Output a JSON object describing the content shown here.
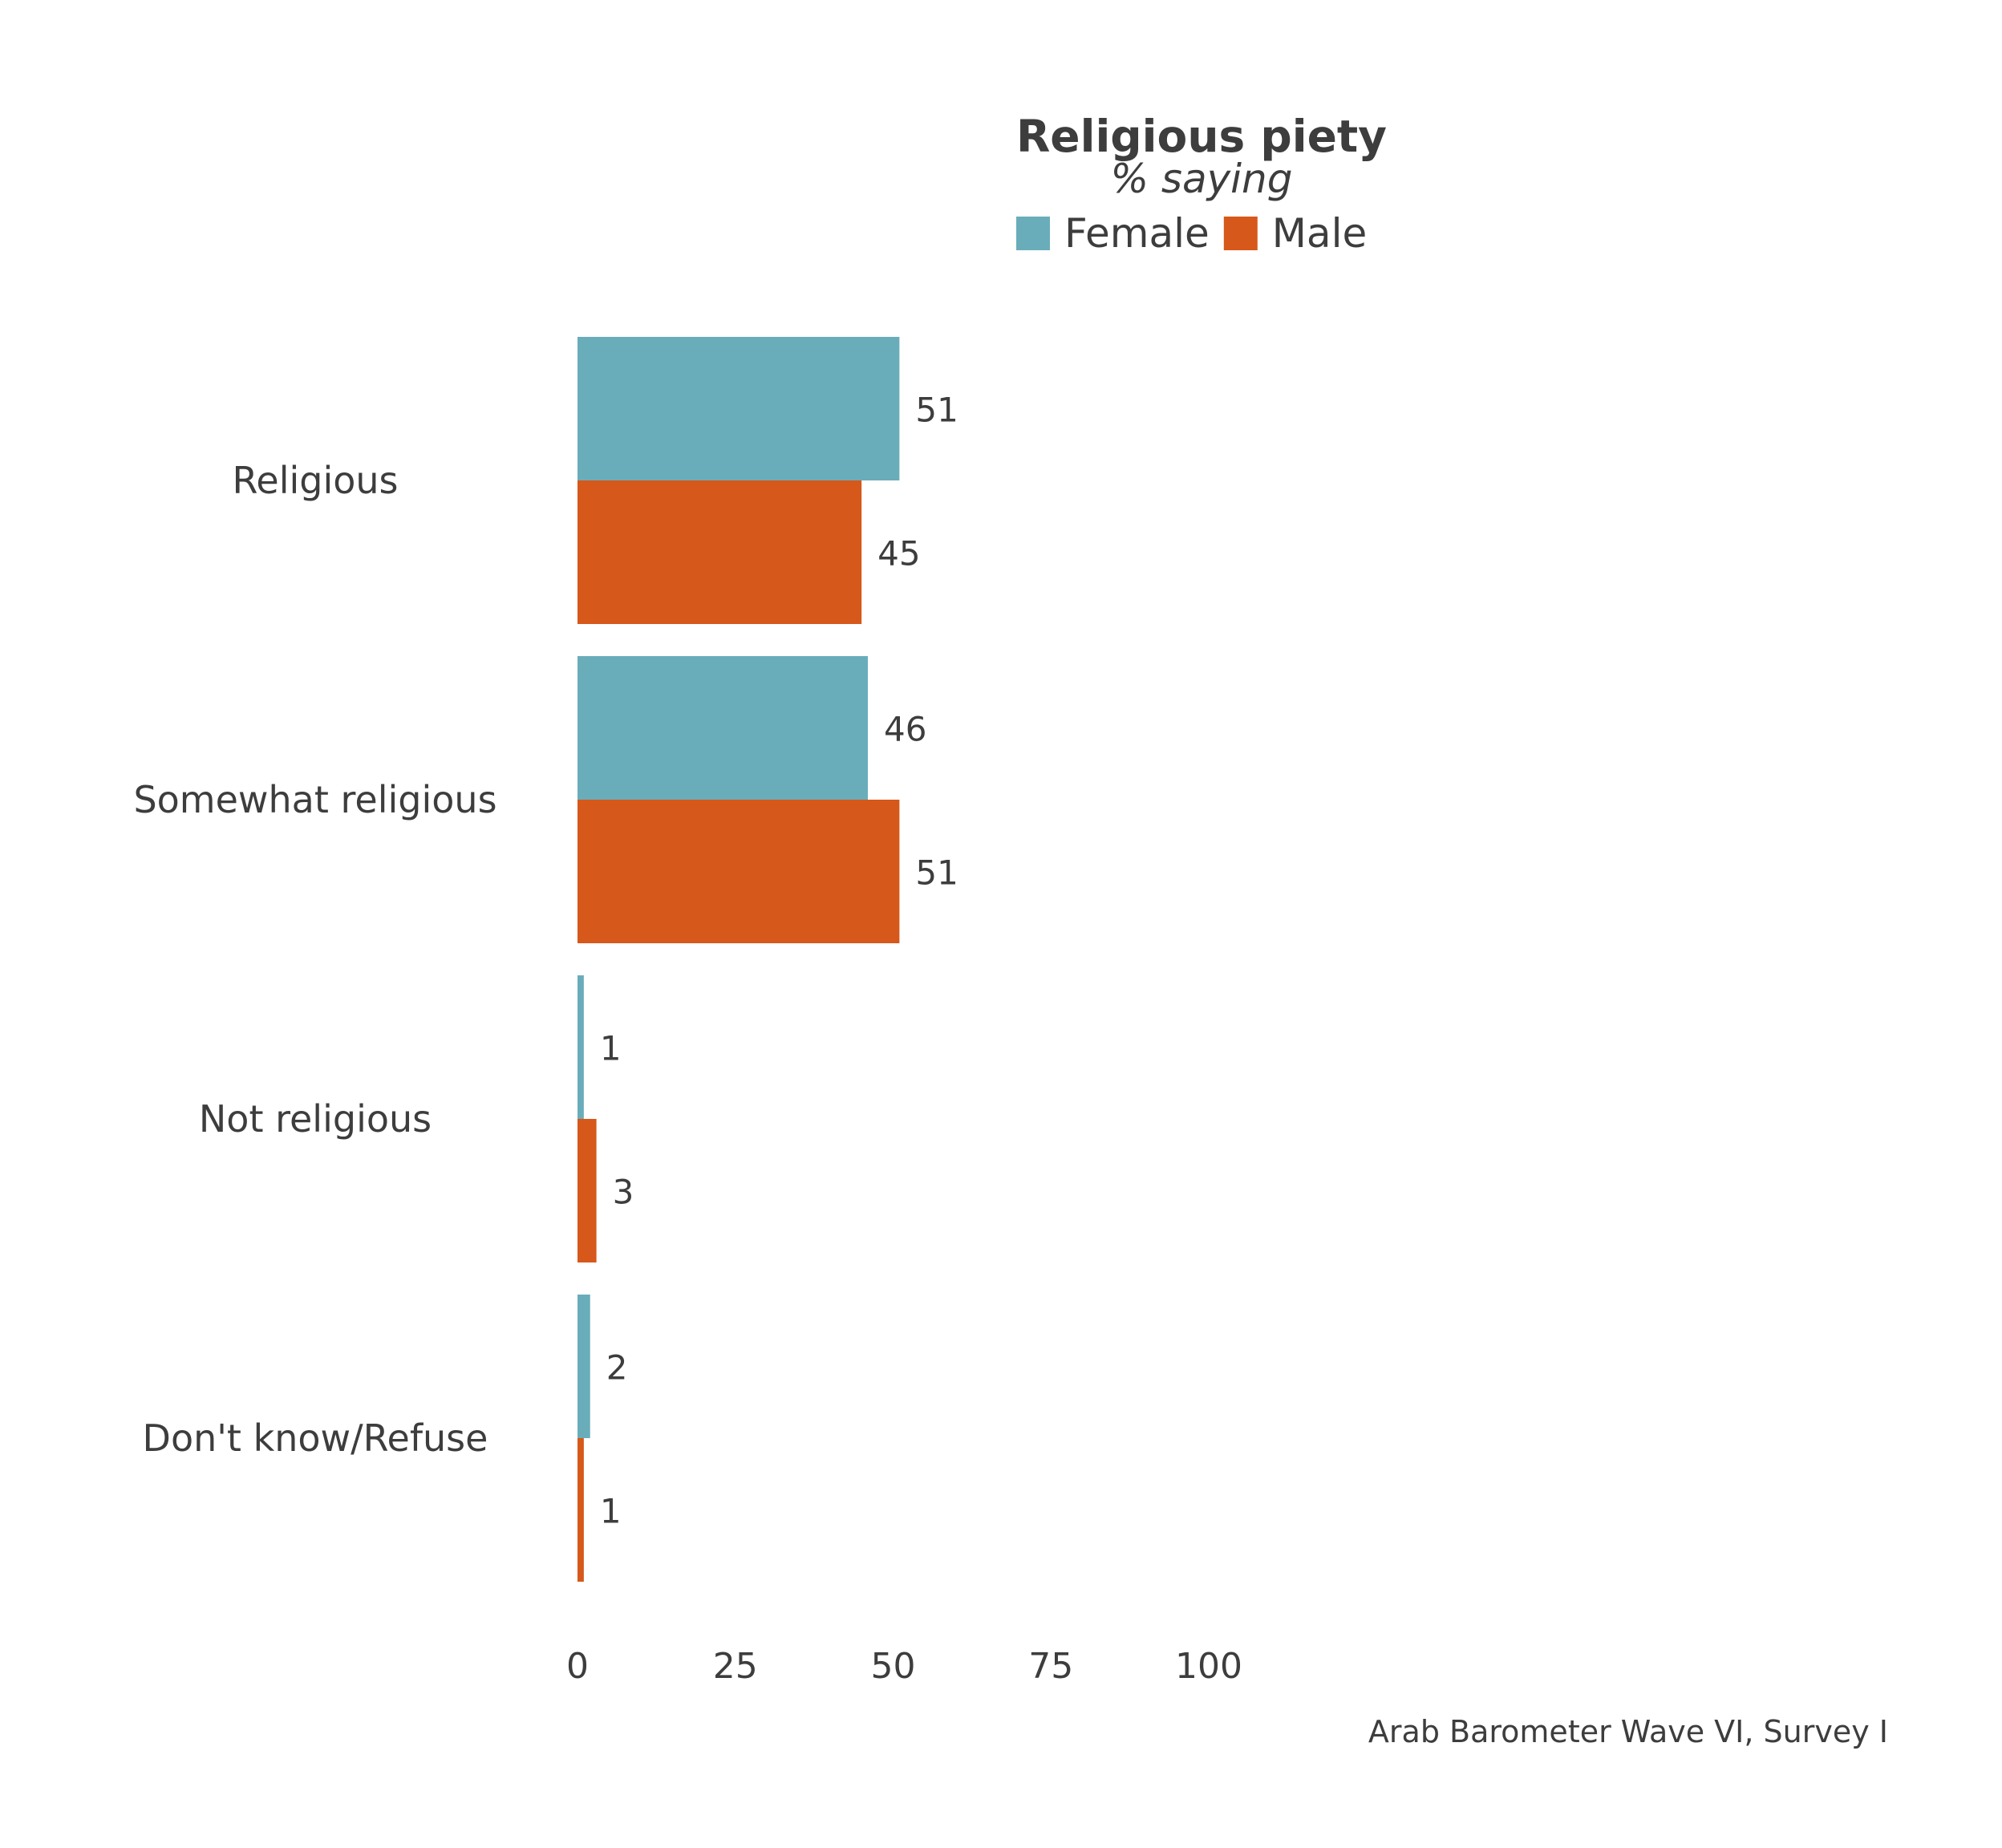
{
  "chart_data": {
    "type": "bar",
    "orientation": "horizontal",
    "title": "Religious piety",
    "subtitle": "% saying",
    "caption": "Arab Barometer Wave VI, Survey I",
    "categories": [
      "Religious",
      "Somewhat religious",
      "Not religious",
      "Don't know/Refuse"
    ],
    "series": [
      {
        "name": "Female",
        "color": "#6aadba",
        "values": [
          51,
          46,
          1,
          2
        ]
      },
      {
        "name": "Male",
        "color": "#d6581b",
        "values": [
          45,
          51,
          3,
          1
        ]
      }
    ],
    "xlim": [
      0,
      100
    ],
    "xticks": [
      0,
      25,
      50,
      75,
      100
    ],
    "legend_position": "top",
    "grid": false,
    "data_labels": true
  }
}
